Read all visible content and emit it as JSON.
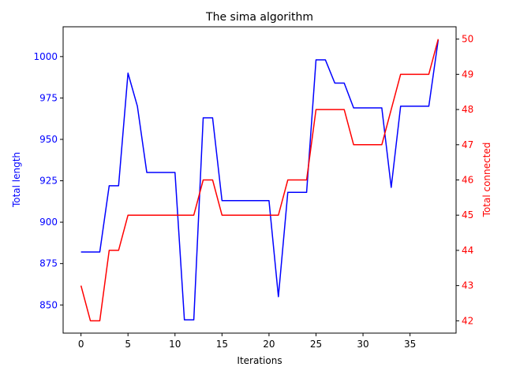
{
  "chart_data": {
    "type": "line",
    "title": "The sima algorithm",
    "xlabel": "Iterations",
    "ylabel_left": "Total length",
    "ylabel_right": "Total connected",
    "x": [
      0,
      1,
      2,
      3,
      4,
      5,
      6,
      7,
      8,
      9,
      10,
      11,
      12,
      13,
      14,
      15,
      16,
      17,
      18,
      19,
      20,
      21,
      22,
      23,
      24,
      25,
      26,
      27,
      28,
      29,
      30,
      31,
      32,
      33,
      34,
      35,
      36,
      37,
      38
    ],
    "xlim": [
      -1.9,
      39.9
    ],
    "xticks": [
      0,
      5,
      10,
      15,
      20,
      25,
      30,
      35
    ],
    "ylim_left": [
      833,
      1018
    ],
    "yticks_left": [
      850,
      875,
      900,
      925,
      950,
      975,
      1000
    ],
    "ylim_right": [
      41.65,
      50.35
    ],
    "yticks_right": [
      42,
      43,
      44,
      45,
      46,
      47,
      48,
      49,
      50
    ],
    "grid": false,
    "series": [
      {
        "name": "Total length",
        "axis": "left",
        "color": "#0000ff",
        "values": [
          882,
          882,
          882,
          922,
          922,
          990,
          970,
          930,
          930,
          930,
          930,
          841,
          841,
          963,
          963,
          913,
          913,
          913,
          913,
          913,
          913,
          855,
          918,
          918,
          918,
          998,
          998,
          984,
          984,
          969,
          969,
          969,
          969,
          921,
          970,
          970,
          970,
          970,
          1010
        ]
      },
      {
        "name": "Total connected",
        "axis": "right",
        "color": "#ff0000",
        "values": [
          43,
          42,
          42,
          44,
          44,
          45,
          45,
          45,
          45,
          45,
          45,
          45,
          45,
          46,
          46,
          45,
          45,
          45,
          45,
          45,
          45,
          45,
          46,
          46,
          46,
          48,
          48,
          48,
          48,
          47,
          47,
          47,
          47,
          48,
          49,
          49,
          49,
          49,
          50
        ]
      }
    ]
  }
}
